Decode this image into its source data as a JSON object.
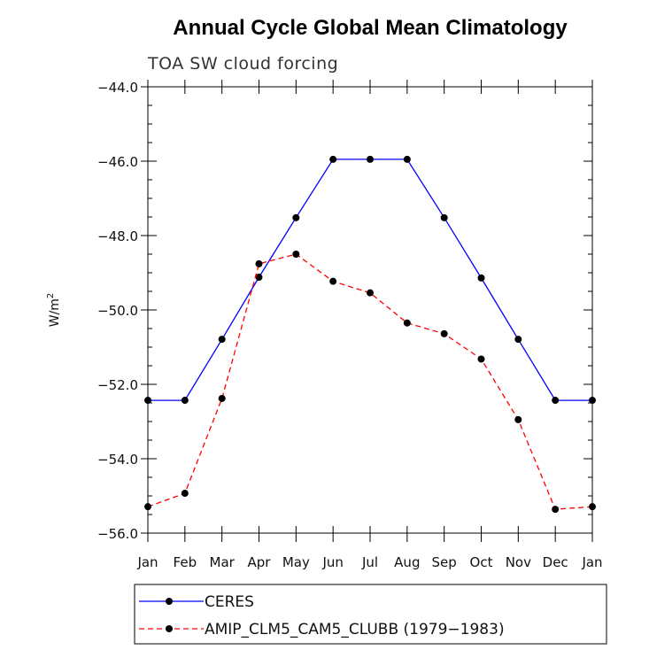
{
  "chart_data": {
    "type": "line",
    "title": "Annual Cycle Global Mean Climatology",
    "subtitle": "TOA SW cloud forcing",
    "ylabel": "W/m",
    "ylabel_sup": "2",
    "xlabel": "",
    "ylim": [
      -56.0,
      -44.0
    ],
    "yticks": [
      "-56.0",
      "-54.0",
      "-52.0",
      "-50.0",
      "-48.0",
      "-46.0",
      "-44.0"
    ],
    "categories": [
      "Jan",
      "Feb",
      "Mar",
      "Apr",
      "May",
      "Jun",
      "Jul",
      "Aug",
      "Sep",
      "Oct",
      "Nov",
      "Dec",
      "Jan"
    ],
    "series": [
      {
        "name": "CERES",
        "color": "#0000ff",
        "style": "solid",
        "values": [
          -52.43,
          -52.43,
          -50.79,
          -49.12,
          -47.52,
          -45.95,
          -45.95,
          -45.95,
          -47.52,
          -49.14,
          -50.79,
          -52.43,
          -52.43
        ]
      },
      {
        "name": "AMIP_CLM5_CAM5_CLUBB (1979-1983)",
        "color": "#ff0000",
        "style": "dashed",
        "values": [
          -55.29,
          -54.93,
          -52.38,
          -48.76,
          -48.5,
          -49.23,
          -49.54,
          -50.35,
          -50.64,
          -51.32,
          -52.95,
          -55.36,
          -55.29
        ]
      }
    ],
    "legend": {
      "position": "bottom",
      "entries": [
        "CERES",
        "AMIP_CLM5_CAM5_CLUBB (1979−1983)"
      ]
    }
  }
}
